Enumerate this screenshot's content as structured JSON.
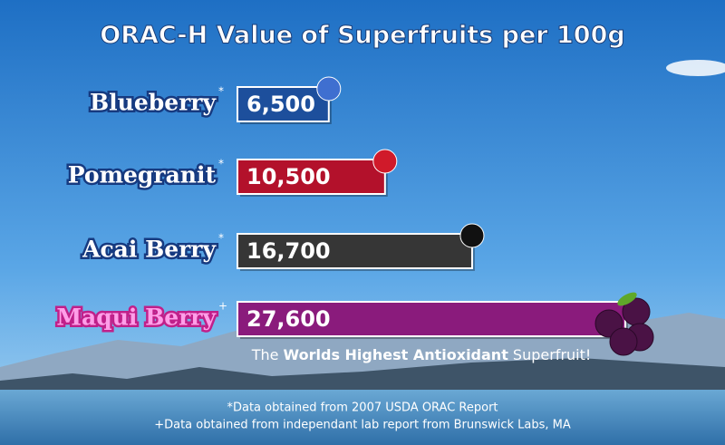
{
  "chart_data": {
    "type": "bar",
    "orientation": "horizontal",
    "title": "ORAC-H Value of Superfruits per 100g",
    "categories": [
      "Blueberry",
      "Pomegranit",
      "Acai Berry",
      "Maqui Berry"
    ],
    "footnote_marks": [
      "*",
      "*",
      "*",
      "+"
    ],
    "values": [
      6500,
      10500,
      16700,
      27600
    ],
    "value_labels": [
      "6,500",
      "10,500",
      "16,700",
      "27,600"
    ],
    "colors": [
      "#1d4f9c",
      "#b3112b",
      "#363636",
      "#8a1b7c"
    ],
    "xlim": [
      0,
      27600
    ],
    "annotation_parts": [
      "The ",
      "Worlds Highest Antioxidant",
      " Superfruit!"
    ],
    "footnotes": [
      "*Data obtained from 2007 USDA ORAC Report",
      "+Data obtained from independant lab report from Brunswick Labs, MA"
    ]
  }
}
